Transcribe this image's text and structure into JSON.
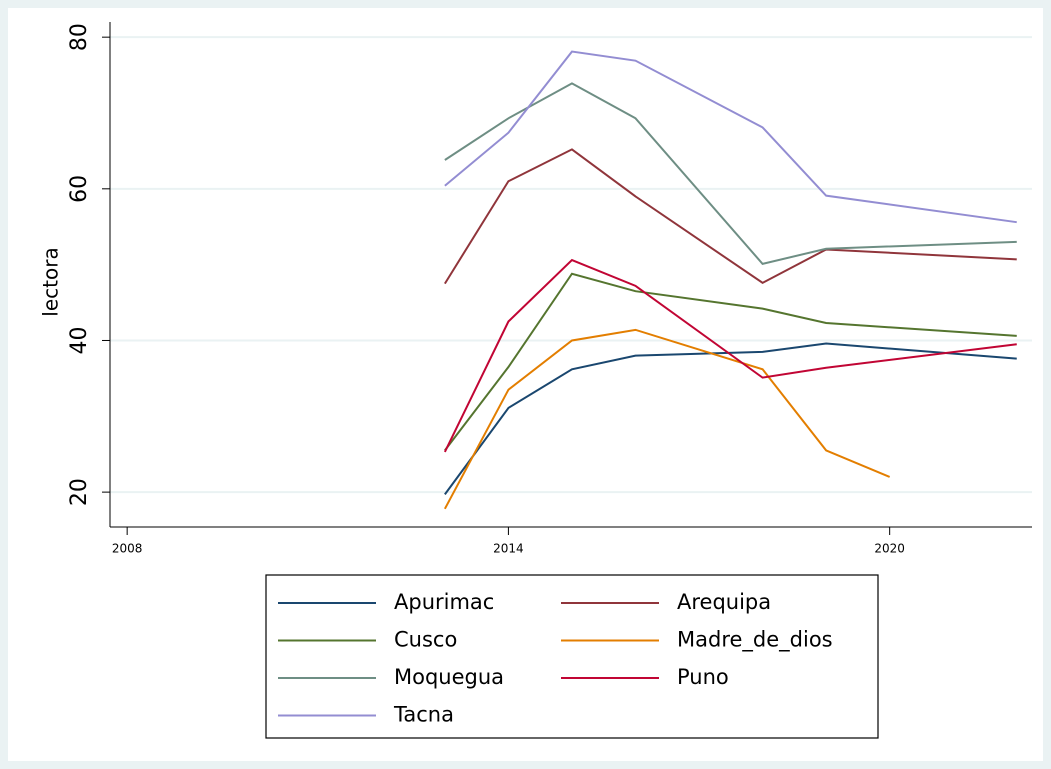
{
  "chart_data": {
    "type": "line",
    "y_label": "lectora",
    "xlim": [
      2007.73,
      2022.24
    ],
    "xticks": [
      2008,
      2014,
      2020
    ],
    "ylim": [
      15.4,
      82
    ],
    "yticks": [
      20,
      40,
      60,
      80
    ],
    "grid": true,
    "legend": "bottom",
    "series": [
      {
        "name": "Apurimac",
        "color": "#1a476f",
        "x": [
          2013,
          2014,
          2015,
          2016,
          2018,
          2019,
          2022
        ],
        "values": [
          19.7,
          31.1,
          36.2,
          38.0,
          38.5,
          39.6,
          37.6
        ]
      },
      {
        "name": "Arequipa",
        "color": "#90353b",
        "x": [
          2013,
          2014,
          2015,
          2016,
          2018,
          2019,
          2022
        ],
        "values": [
          47.5,
          61.0,
          65.2,
          59.0,
          47.6,
          52.0,
          50.7
        ]
      },
      {
        "name": "Cusco",
        "color": "#55752f",
        "x": [
          2013,
          2014,
          2015,
          2016,
          2018,
          2019,
          2022
        ],
        "values": [
          25.5,
          36.5,
          48.8,
          46.5,
          44.2,
          42.3,
          40.6
        ]
      },
      {
        "name": "Madre_de_dios",
        "color": "#e37e00",
        "x": [
          2013,
          2014,
          2015,
          2016,
          2018,
          2019,
          2020
        ],
        "values": [
          17.8,
          33.5,
          40.0,
          41.4,
          36.2,
          25.5,
          22.0
        ]
      },
      {
        "name": "Moquegua",
        "color": "#6e8e84",
        "x": [
          2013,
          2014,
          2015,
          2016,
          2018,
          2019,
          2022
        ],
        "values": [
          63.8,
          69.3,
          73.9,
          69.3,
          50.1,
          52.1,
          53.0
        ]
      },
      {
        "name": "Puno",
        "color": "#c10534",
        "x": [
          2013,
          2014,
          2015,
          2016,
          2018,
          2019,
          2022
        ],
        "values": [
          25.3,
          42.5,
          50.6,
          47.2,
          35.1,
          36.4,
          39.5
        ]
      },
      {
        "name": "Tacna",
        "color": "#938dd2",
        "x": [
          2013,
          2014,
          2015,
          2016,
          2018,
          2019,
          2022
        ],
        "values": [
          60.4,
          67.4,
          78.1,
          76.9,
          68.1,
          59.1,
          55.6
        ]
      }
    ]
  }
}
